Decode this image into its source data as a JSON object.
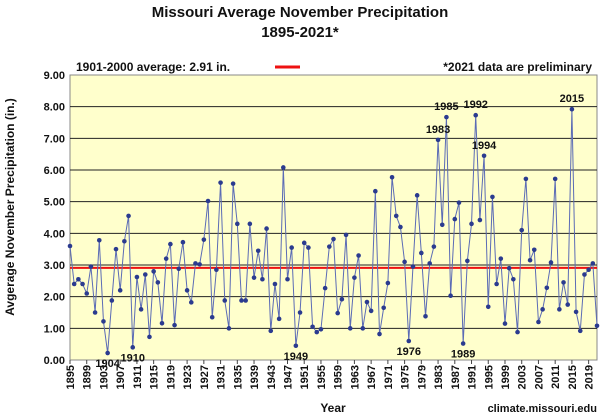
{
  "chart_data": {
    "type": "line",
    "title": "Missouri Average November Precipitation",
    "subtitle": "1895-2021*",
    "xlabel": "Year",
    "ylabel": "Avgerage November Precipitation  (in.)",
    "ylim": [
      0,
      9
    ],
    "yticks": [
      "0.00",
      "1.00",
      "2.00",
      "3.00",
      "4.00",
      "5.00",
      "6.00",
      "7.00",
      "8.00",
      "9.00"
    ],
    "xlim": [
      1895,
      2021
    ],
    "xticks": [
      1895,
      1899,
      1903,
      1907,
      1911,
      1915,
      1919,
      1923,
      1927,
      1931,
      1935,
      1939,
      1943,
      1947,
      1951,
      1955,
      1959,
      1963,
      1967,
      1971,
      1975,
      1979,
      1983,
      1987,
      1991,
      1995,
      1999,
      2003,
      2007,
      2011,
      2015,
      2019
    ],
    "grid": "horizontal",
    "legend": {
      "label": "1901-2000 average: 2.91 in.",
      "position": "top-left"
    },
    "note": "*2021 data are preliminary",
    "source": "climate.missouri.edu",
    "average": 2.91,
    "colors": {
      "plot_bg": "#ffffcc",
      "line": "#5b6bb5",
      "marker": "#2b3b8f",
      "average": "#ee1111"
    },
    "series": [
      {
        "name": "",
        "x": [
          1895,
          1896,
          1897,
          1898,
          1899,
          1900,
          1901,
          1902,
          1903,
          1904,
          1905,
          1906,
          1907,
          1908,
          1909,
          1910,
          1911,
          1912,
          1913,
          1914,
          1915,
          1916,
          1917,
          1918,
          1919,
          1920,
          1921,
          1922,
          1923,
          1924,
          1925,
          1926,
          1927,
          1928,
          1929,
          1930,
          1931,
          1932,
          1933,
          1934,
          1935,
          1936,
          1937,
          1938,
          1939,
          1940,
          1941,
          1942,
          1943,
          1944,
          1945,
          1946,
          1947,
          1948,
          1949,
          1950,
          1951,
          1952,
          1953,
          1954,
          1955,
          1956,
          1957,
          1958,
          1959,
          1960,
          1961,
          1962,
          1963,
          1964,
          1965,
          1966,
          1967,
          1968,
          1969,
          1970,
          1971,
          1972,
          1973,
          1974,
          1975,
          1976,
          1977,
          1978,
          1979,
          1980,
          1981,
          1982,
          1983,
          1984,
          1985,
          1986,
          1987,
          1988,
          1989,
          1990,
          1991,
          1992,
          1993,
          1994,
          1995,
          1996,
          1997,
          1998,
          1999,
          2000,
          2001,
          2002,
          2003,
          2004,
          2005,
          2006,
          2007,
          2008,
          2009,
          2010,
          2011,
          2012,
          2013,
          2014,
          2015,
          2016,
          2017,
          2018,
          2019,
          2020,
          2021
        ],
        "y": [
          3.6,
          2.4,
          2.55,
          2.4,
          2.1,
          2.95,
          1.5,
          3.78,
          1.22,
          0.22,
          1.88,
          3.5,
          2.2,
          3.75,
          4.55,
          0.4,
          2.62,
          1.6,
          2.7,
          0.73,
          2.8,
          2.45,
          1.16,
          3.2,
          3.66,
          1.1,
          2.88,
          3.72,
          2.2,
          1.82,
          3.05,
          3.02,
          3.8,
          5.02,
          1.35,
          2.85,
          5.6,
          1.88,
          1.0,
          5.57,
          4.3,
          1.88,
          1.88,
          4.3,
          2.6,
          3.45,
          2.55,
          4.15,
          0.92,
          2.4,
          1.3,
          6.08,
          2.55,
          3.55,
          0.45,
          1.5,
          3.7,
          3.55,
          1.05,
          0.88,
          0.97,
          2.27,
          3.58,
          3.82,
          1.48,
          1.92,
          3.95,
          1.0,
          2.6,
          3.3,
          1.0,
          1.83,
          1.55,
          5.33,
          0.82,
          1.65,
          2.43,
          5.77,
          4.55,
          4.2,
          3.1,
          0.6,
          2.95,
          5.2,
          3.38,
          1.38,
          3.05,
          3.58,
          6.95,
          4.27,
          7.67,
          2.03,
          4.45,
          4.97,
          0.52,
          3.13,
          4.3,
          7.73,
          4.42,
          6.45,
          1.68,
          5.15,
          2.4,
          3.2,
          1.15,
          2.9,
          2.55,
          0.88,
          4.1,
          5.72,
          3.15,
          3.48,
          1.2,
          1.6,
          2.28,
          3.08,
          5.72,
          1.6,
          2.45,
          1.75,
          7.92,
          1.52,
          0.92,
          2.7,
          2.85,
          3.05,
          1.08
        ]
      }
    ],
    "annotations": [
      {
        "x": 1904,
        "label": "1904"
      },
      {
        "x": 1910,
        "label": "1910"
      },
      {
        "x": 1949,
        "label": "1949"
      },
      {
        "x": 1976,
        "label": "1976"
      },
      {
        "x": 1989,
        "label": "1989"
      },
      {
        "x": 1983,
        "label": "1983"
      },
      {
        "x": 1985,
        "label": "1985"
      },
      {
        "x": 1992,
        "label": "1992"
      },
      {
        "x": 1994,
        "label": "1994"
      },
      {
        "x": 2015,
        "label": "2015"
      }
    ]
  }
}
